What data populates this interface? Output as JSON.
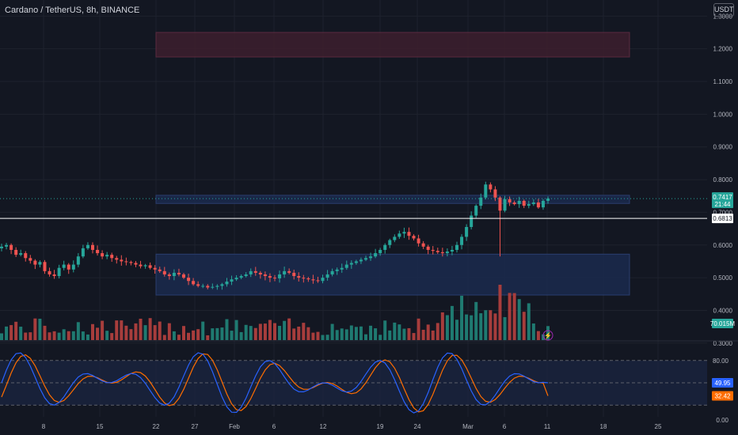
{
  "header": {
    "title": "Cardano / TetherUS, 8h, BINANCE",
    "currency": "USDT"
  },
  "colors": {
    "bg": "#131722",
    "grid": "#1e222d",
    "up": "#26a69a",
    "down": "#ef5350",
    "upVol": "#1f7a71",
    "downVol": "#a73d3c",
    "text": "#b2b5be",
    "kLine": "#2962ff",
    "dLine": "#ff6d00",
    "zoneRed": "#3d1f2e",
    "zoneBlue": "#1b2a4e",
    "hline": "#ffffff"
  },
  "chart_data": {
    "type": "candlestick",
    "title": "Cardano / TetherUS, 8h, BINANCE",
    "price_axis": {
      "ticks": [
        "1.3000",
        "1.2000",
        "1.1000",
        "1.0000",
        "0.9000",
        "0.8000",
        "0.7000",
        "0.6000",
        "0.5000",
        "0.4000",
        "0.3000"
      ],
      "ylim": [
        0.285,
        1.325
      ]
    },
    "time_axis": {
      "ticks": [
        "8",
        "15",
        "22",
        "27",
        "Feb",
        "6",
        "12",
        "19",
        "24",
        "Mar",
        "6",
        "11",
        "18",
        "25"
      ]
    },
    "price_labels": {
      "last": "0.7417",
      "countdown": "21:44",
      "hline": "0.6813"
    },
    "horizontal_line": 0.6813,
    "zones": [
      {
        "kind": "resistance",
        "top": 1.25,
        "bottom": 1.175,
        "start": "22",
        "end": "21"
      },
      {
        "kind": "supply",
        "top": 0.752,
        "bottom": 0.727,
        "start": "22",
        "end": "21"
      },
      {
        "kind": "demand",
        "top": 0.572,
        "bottom": 0.447,
        "start": "22",
        "end": "21"
      }
    ],
    "close_path": [
      0.595,
      0.6,
      0.585,
      0.57,
      0.575,
      0.56,
      0.552,
      0.54,
      0.548,
      0.52,
      0.51,
      0.505,
      0.53,
      0.54,
      0.525,
      0.54,
      0.565,
      0.59,
      0.6,
      0.585,
      0.575,
      0.565,
      0.57,
      0.56,
      0.555,
      0.55,
      0.548,
      0.545,
      0.54,
      0.535,
      0.538,
      0.53,
      0.525,
      0.52,
      0.51,
      0.505,
      0.515,
      0.51,
      0.5,
      0.49,
      0.48,
      0.475,
      0.475,
      0.47,
      0.472,
      0.475,
      0.48,
      0.488,
      0.495,
      0.5,
      0.505,
      0.51,
      0.52,
      0.515,
      0.51,
      0.505,
      0.5,
      0.498,
      0.51,
      0.52,
      0.515,
      0.505,
      0.5,
      0.498,
      0.495,
      0.492,
      0.49,
      0.5,
      0.51,
      0.52,
      0.525,
      0.53,
      0.54,
      0.545,
      0.55,
      0.555,
      0.56,
      0.565,
      0.575,
      0.585,
      0.6,
      0.615,
      0.625,
      0.635,
      0.64,
      0.628,
      0.62,
      0.605,
      0.595,
      0.585,
      0.582,
      0.578,
      0.575,
      0.58,
      0.585,
      0.6,
      0.625,
      0.655,
      0.69,
      0.72,
      0.745,
      0.785,
      0.77,
      0.745,
      0.705,
      0.74,
      0.73,
      0.725,
      0.735,
      0.72,
      0.725,
      0.73,
      0.715,
      0.735,
      0.742
    ],
    "volume": {
      "label": "70.015M"
    },
    "oscillator": {
      "name": "Stoch RSI",
      "ticks": [
        "80.00",
        "0.00"
      ],
      "upper": 80,
      "lower": 20,
      "k_label": "49.95",
      "d_label": "32.42",
      "k_last": 49.95,
      "d_last": 32.42
    }
  }
}
